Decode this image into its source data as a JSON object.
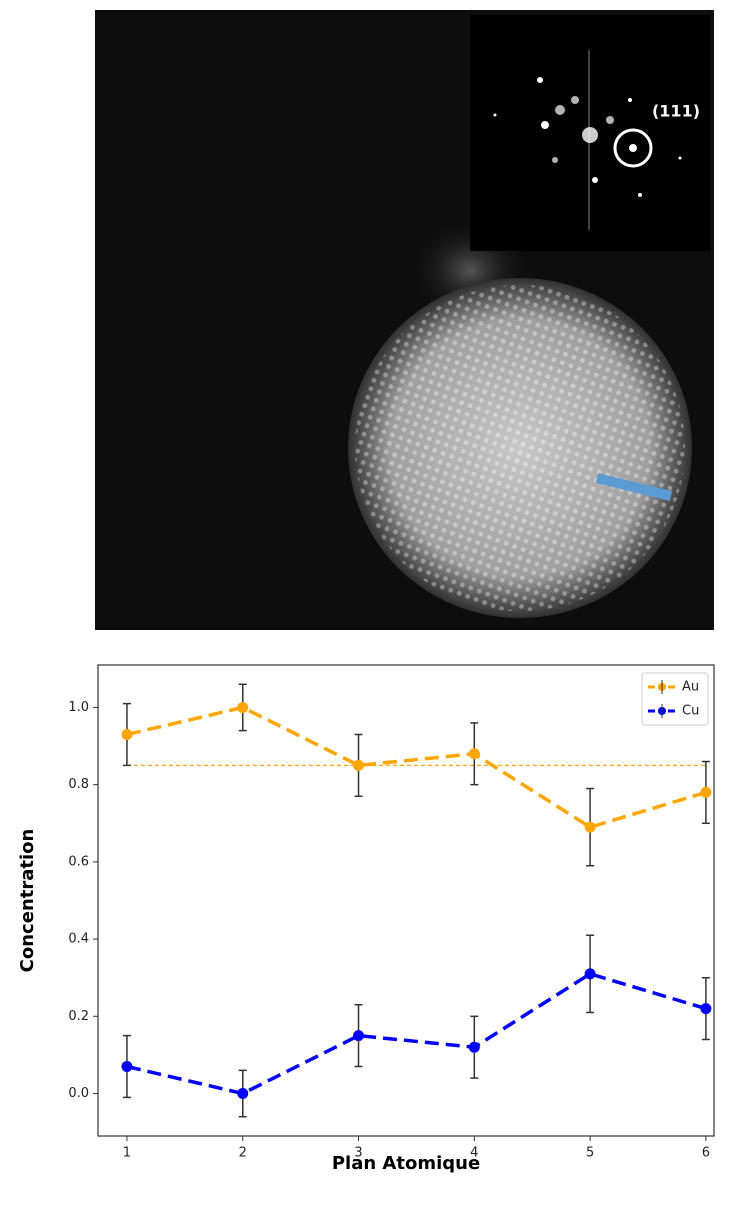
{
  "image": {
    "inset_label": "(111)"
  },
  "chart_data": {
    "type": "line",
    "x_label": "Plan Atomique",
    "y_label": "Concentration",
    "x": [
      1,
      2,
      3,
      4,
      5,
      6
    ],
    "series": [
      {
        "name": "Au",
        "color": "#ffa500",
        "values": [
          0.93,
          1.0,
          0.85,
          0.88,
          0.69,
          0.78
        ],
        "errors": [
          0.08,
          0.06,
          0.08,
          0.08,
          0.1,
          0.08
        ]
      },
      {
        "name": "Cu",
        "color": "#0000ff",
        "values": [
          0.07,
          0.0,
          0.15,
          0.12,
          0.31,
          0.22
        ],
        "errors": [
          0.08,
          0.06,
          0.08,
          0.08,
          0.1,
          0.08
        ]
      }
    ],
    "reference_line": {
      "value": 0.85,
      "color": "#ffa500"
    },
    "xlim": [
      0.75,
      6.07
    ],
    "ylim": [
      -0.11,
      1.11
    ],
    "xticks": [
      1,
      2,
      3,
      4,
      5,
      6
    ],
    "yticks": [
      {
        "value": 0.0,
        "label": "0.0"
      },
      {
        "value": 0.2,
        "label": "0.2"
      },
      {
        "value": 0.4,
        "label": "0.4"
      },
      {
        "value": 0.6,
        "label": "0.6"
      },
      {
        "value": 0.8,
        "label": "0.8"
      },
      {
        "value": 1.0,
        "label": "1.0"
      }
    ],
    "legend": "upper right"
  }
}
